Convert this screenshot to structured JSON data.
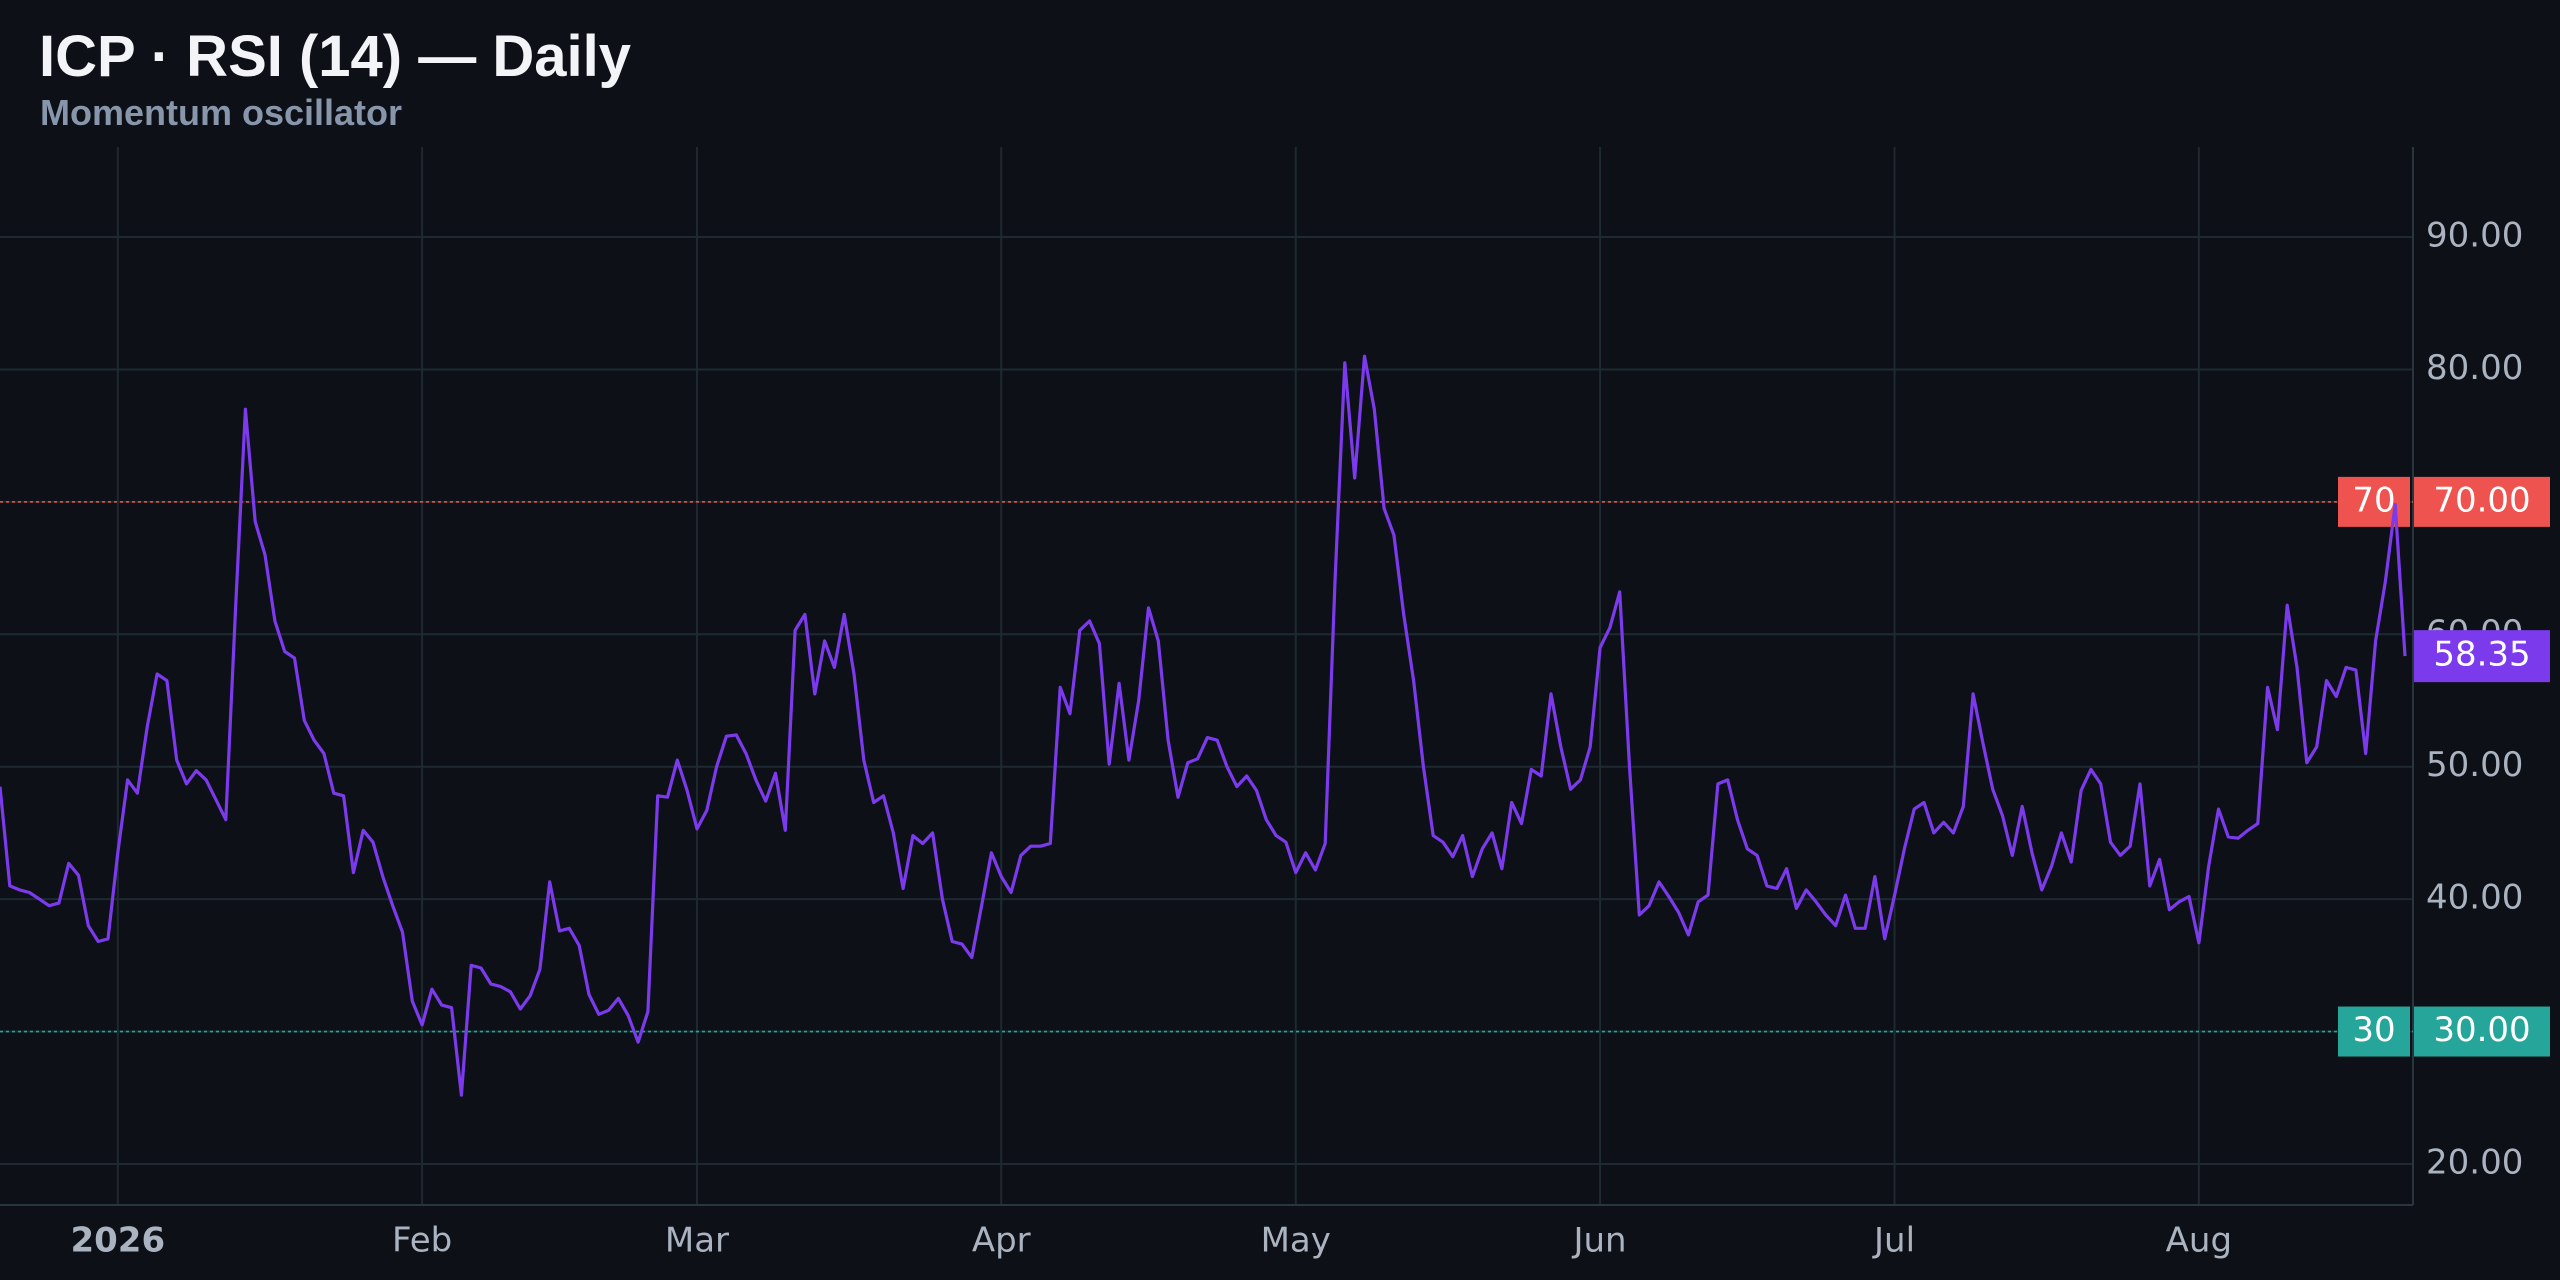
{
  "chart_data": {
    "type": "line",
    "title": "ICP · RSI (14) — Daily",
    "subtitle": "Momentum oscillator",
    "categories": [
      null,
      null,
      null,
      null,
      null,
      null,
      null,
      null,
      null,
      null,
      null,
      null,
      "2026",
      null,
      null,
      null,
      null,
      null,
      null,
      null,
      null,
      null,
      null,
      null,
      null,
      null,
      null,
      null,
      null,
      null,
      null,
      null,
      null,
      null,
      null,
      null,
      null,
      null,
      null,
      null,
      null,
      null,
      null,
      "Feb",
      null,
      null,
      null,
      null,
      null,
      null,
      null,
      null,
      null,
      null,
      null,
      null,
      null,
      null,
      null,
      null,
      null,
      null,
      null,
      null,
      null,
      null,
      null,
      null,
      null,
      null,
      null,
      "Mar",
      null,
      null,
      null,
      null,
      null,
      null,
      null,
      null,
      null,
      null,
      null,
      null,
      null,
      null,
      null,
      null,
      null,
      null,
      null,
      null,
      null,
      null,
      null,
      null,
      null,
      null,
      null,
      null,
      null,
      null,
      "Apr",
      null,
      null,
      null,
      null,
      null,
      null,
      null,
      null,
      null,
      null,
      null,
      null,
      null,
      null,
      null,
      null,
      null,
      null,
      null,
      null,
      null,
      null,
      null,
      null,
      null,
      null,
      null,
      null,
      null,
      "May",
      null,
      null,
      null,
      null,
      null,
      null,
      null,
      null,
      null,
      null,
      null,
      null,
      null,
      null,
      null,
      null,
      null,
      null,
      null,
      null,
      null,
      null,
      null,
      null,
      null,
      null,
      null,
      null,
      null,
      null,
      "Jun",
      null,
      null,
      null,
      null,
      null,
      null,
      null,
      null,
      null,
      null,
      null,
      null,
      null,
      null,
      null,
      null,
      null,
      null,
      null,
      null,
      null,
      null,
      null,
      null,
      null,
      null,
      null,
      null,
      null,
      "Jul",
      null,
      null,
      null,
      null,
      null,
      null,
      null,
      null,
      null,
      null,
      null,
      null,
      null,
      null,
      null,
      null,
      null,
      null,
      null,
      null,
      null,
      null,
      null,
      null,
      null,
      null,
      null,
      null,
      null,
      null,
      "Aug",
      null,
      null,
      null,
      null,
      null,
      null,
      null,
      null,
      null,
      null,
      null,
      null,
      null,
      null,
      null,
      null,
      null,
      null,
      null,
      null,
      null
    ],
    "series": [
      {
        "name": "RSI (14)",
        "color": "#7c3aed",
        "values": [
          48.5,
          41,
          40.7,
          40.5,
          40,
          39.5,
          39.7,
          42.7,
          41.8,
          38,
          36.8,
          37,
          43.5,
          49,
          48,
          53,
          57,
          56.5,
          50.5,
          48.7,
          49.7,
          49,
          47.5,
          46,
          62,
          77,
          68.5,
          66,
          61,
          58.7,
          58.2,
          53.5,
          52,
          51,
          48,
          47.8,
          42,
          45.2,
          44.3,
          41.7,
          39.5,
          37.5,
          32.3,
          30.5,
          33.2,
          32,
          31.8,
          25.2,
          35,
          34.8,
          33.6,
          33.4,
          33,
          31.7,
          32.7,
          34.7,
          41.3,
          37.6,
          37.8,
          36.5,
          32.8,
          31.3,
          31.6,
          32.5,
          31.2,
          29.2,
          31.5,
          47.8,
          47.7,
          50.5,
          48.2,
          45.3,
          46.7,
          50,
          52.3,
          52.4,
          51,
          49,
          47.4,
          49.5,
          45.2,
          60.3,
          61.5,
          55.5,
          59.5,
          57.5,
          61.5,
          57,
          50.5,
          47.3,
          47.8,
          45,
          40.8,
          44.8,
          44.2,
          45,
          40,
          36.8,
          36.6,
          35.6,
          39.5,
          43.5,
          41.7,
          40.5,
          43.3,
          44,
          44,
          44.2,
          56,
          54,
          60.3,
          61,
          59.3,
          50.2,
          56.3,
          50.5,
          55,
          62,
          59.5,
          52,
          47.7,
          50.3,
          50.6,
          52.2,
          52,
          50,
          48.5,
          49.3,
          48.2,
          46,
          44.8,
          44.3,
          42,
          43.5,
          42.2,
          44.2,
          64,
          80.5,
          71.8,
          81,
          77,
          69.5,
          67.5,
          61.5,
          56.5,
          50,
          44.8,
          44.3,
          43.2,
          44.8,
          41.7,
          43.8,
          45,
          42.3,
          47.3,
          45.7,
          49.8,
          49.3,
          55.5,
          51.5,
          48.3,
          49,
          51.5,
          59,
          60.5,
          63.2,
          50,
          38.8,
          39.5,
          41.3,
          40.2,
          39,
          37.3,
          39.8,
          40.3,
          48.7,
          49,
          46,
          43.8,
          43.3,
          41,
          40.8,
          42.3,
          39.3,
          40.7,
          39.8,
          38.8,
          38,
          40.3,
          37.8,
          37.8,
          41.7,
          37,
          40.3,
          43.8,
          46.8,
          47.3,
          45,
          45.8,
          45,
          47,
          55.5,
          51.8,
          48.3,
          46.3,
          43.3,
          47,
          43.5,
          40.7,
          42.5,
          45,
          42.8,
          48.2,
          49.8,
          48.7,
          44.3,
          43.3,
          44,
          48.7,
          41,
          43,
          39.2,
          39.8,
          40.2,
          36.7,
          42.5,
          46.8,
          44.7,
          44.6,
          45.2,
          45.7,
          56,
          52.8,
          62.2,
          57.5,
          50.3,
          51.5,
          56.5,
          55.3,
          57.5,
          57.3,
          51,
          59.5,
          64,
          69.8,
          58.35
        ]
      }
    ],
    "ylim": [
      16.9,
      96.8
    ],
    "yticks": [
      {
        "value": 20,
        "label": "20.00"
      },
      {
        "value": 30,
        "label": "30.00"
      },
      {
        "value": 40,
        "label": "40.00"
      },
      {
        "value": 50,
        "label": "50.00"
      },
      {
        "value": 60,
        "label": "60.00"
      },
      {
        "value": 70,
        "label": "70.00"
      },
      {
        "value": 80,
        "label": "80.00"
      },
      {
        "value": 90,
        "label": "90.00"
      }
    ],
    "grid": true,
    "reference_lines": [
      {
        "value": 70,
        "axis_label": "70.00",
        "color": "#ef5350"
      },
      {
        "value": 30,
        "axis_label": "30.00",
        "color": "#26a69a"
      }
    ]
  }
}
